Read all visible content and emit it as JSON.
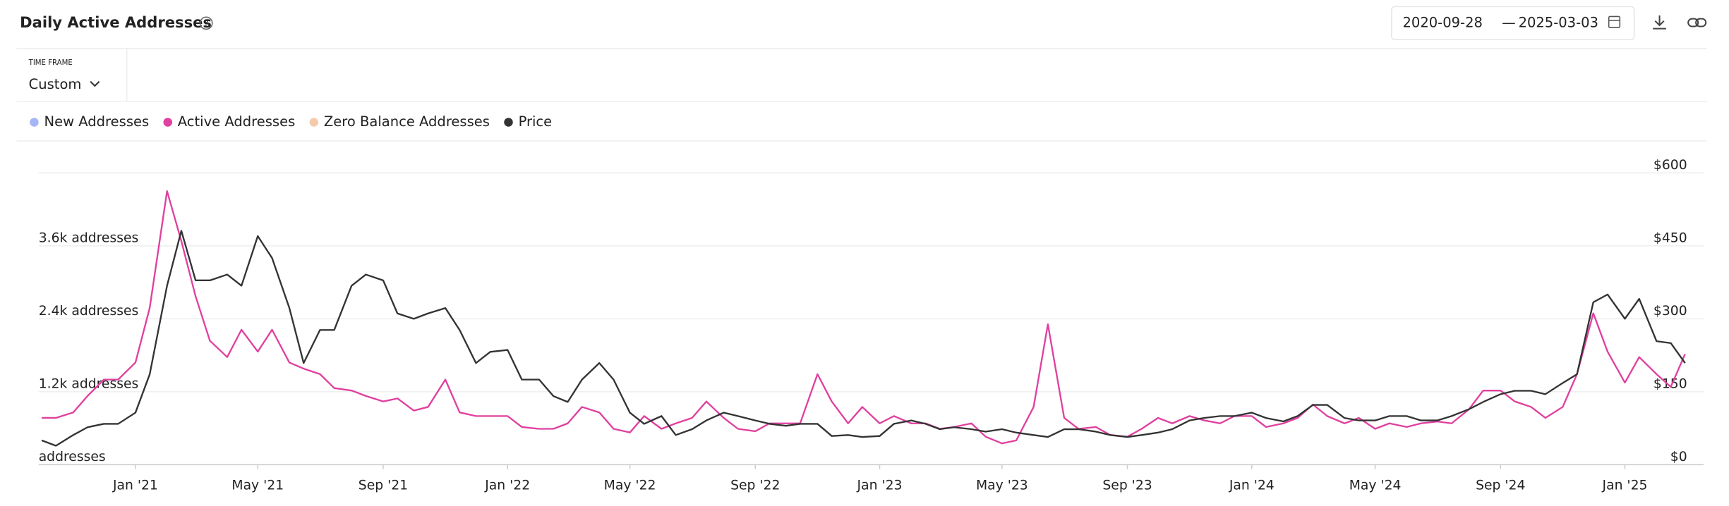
{
  "header": {
    "title": "Daily Active Addresses",
    "date_from": "2020-09-28",
    "date_separator": "—",
    "date_to": "2025-03-03",
    "timeframe_label": "TIME FRAME",
    "timeframe_value": "Custom"
  },
  "chart_data": {
    "type": "line",
    "x": [
      "2020-10-01",
      "2020-10-15",
      "2020-11-01",
      "2020-11-15",
      "2020-12-01",
      "2020-12-15",
      "2021-01-01",
      "2021-01-15",
      "2021-02-01",
      "2021-02-15",
      "2021-03-01",
      "2021-03-15",
      "2021-04-01",
      "2021-04-15",
      "2021-05-01",
      "2021-05-15",
      "2021-06-01",
      "2021-06-15",
      "2021-07-01",
      "2021-07-15",
      "2021-08-01",
      "2021-08-15",
      "2021-09-01",
      "2021-09-15",
      "2021-10-01",
      "2021-10-15",
      "2021-11-01",
      "2021-11-15",
      "2021-12-01",
      "2021-12-15",
      "2022-01-01",
      "2022-01-15",
      "2022-02-01",
      "2022-02-15",
      "2022-03-01",
      "2022-03-15",
      "2022-04-01",
      "2022-04-15",
      "2022-05-01",
      "2022-05-15",
      "2022-06-01",
      "2022-06-15",
      "2022-07-01",
      "2022-07-15",
      "2022-08-01",
      "2022-08-15",
      "2022-09-01",
      "2022-09-15",
      "2022-10-01",
      "2022-10-15",
      "2022-11-01",
      "2022-11-15",
      "2022-12-01",
      "2022-12-15",
      "2023-01-01",
      "2023-01-15",
      "2023-02-01",
      "2023-02-15",
      "2023-03-01",
      "2023-03-15",
      "2023-04-01",
      "2023-04-15",
      "2023-05-01",
      "2023-05-15",
      "2023-06-01",
      "2023-06-15",
      "2023-07-01",
      "2023-07-15",
      "2023-08-01",
      "2023-08-15",
      "2023-09-01",
      "2023-09-15",
      "2023-10-01",
      "2023-10-15",
      "2023-11-01",
      "2023-11-15",
      "2023-12-01",
      "2023-12-15",
      "2024-01-01",
      "2024-01-15",
      "2024-02-01",
      "2024-02-15",
      "2024-03-01",
      "2024-03-15",
      "2024-04-01",
      "2024-04-15",
      "2024-05-01",
      "2024-05-15",
      "2024-06-01",
      "2024-06-15",
      "2024-07-01",
      "2024-07-15",
      "2024-08-01",
      "2024-08-15",
      "2024-09-01",
      "2024-09-15",
      "2024-10-01",
      "2024-10-15",
      "2024-11-01",
      "2024-11-15",
      "2024-12-01",
      "2024-12-15",
      "2025-01-01",
      "2025-01-15",
      "2025-02-01",
      "2025-02-15",
      "2025-03-01"
    ],
    "xlim": [
      "2020-09-28",
      "2025-03-03"
    ],
    "xticks": [
      {
        "value": "2021-01-01",
        "label": "Jan '21"
      },
      {
        "value": "2021-05-01",
        "label": "May '21"
      },
      {
        "value": "2021-09-01",
        "label": "Sep '21"
      },
      {
        "value": "2022-01-01",
        "label": "Jan '22"
      },
      {
        "value": "2022-05-01",
        "label": "May '22"
      },
      {
        "value": "2022-09-01",
        "label": "Sep '22"
      },
      {
        "value": "2023-01-01",
        "label": "Jan '23"
      },
      {
        "value": "2023-05-01",
        "label": "May '23"
      },
      {
        "value": "2023-09-01",
        "label": "Sep '23"
      },
      {
        "value": "2024-01-01",
        "label": "Jan '24"
      },
      {
        "value": "2024-05-01",
        "label": "May '24"
      },
      {
        "value": "2024-09-01",
        "label": "Sep '24"
      },
      {
        "value": "2025-01-01",
        "label": "Jan '25"
      }
    ],
    "ylim": [
      0,
      4800
    ],
    "yticks": [
      {
        "value": 0,
        "label": "addresses"
      },
      {
        "value": 1200,
        "label": "1.2k addresses"
      },
      {
        "value": 2400,
        "label": "2.4k addresses"
      },
      {
        "value": 3600,
        "label": "3.6k addresses"
      }
    ],
    "y2lim": [
      0,
      600
    ],
    "y2ticks": [
      {
        "value": 0,
        "label": "$0"
      },
      {
        "value": 150,
        "label": "$150"
      },
      {
        "value": 300,
        "label": "$300"
      },
      {
        "value": 450,
        "label": "$450"
      },
      {
        "value": 600,
        "label": "$600"
      }
    ],
    "grid": true,
    "series": [
      {
        "name": "Active Addresses",
        "color": "#e0409f",
        "values": [
          770,
          770,
          860,
          1130,
          1400,
          1400,
          1680,
          2580,
          4500,
          3680,
          2770,
          2040,
          1770,
          2220,
          1860,
          2220,
          1680,
          1580,
          1490,
          1260,
          1220,
          1130,
          1040,
          1090,
          890,
          950,
          1400,
          860,
          800,
          800,
          800,
          620,
          590,
          590,
          680,
          950,
          860,
          590,
          530,
          800,
          590,
          680,
          770,
          1040,
          770,
          590,
          550,
          680,
          680,
          680,
          1490,
          1040,
          680,
          950,
          680,
          800,
          680,
          680,
          590,
          620,
          680,
          460,
          350,
          400,
          950,
          2310,
          770,
          590,
          620,
          490,
          460,
          590,
          770,
          680,
          800,
          730,
          680,
          800,
          800,
          620,
          680,
          770,
          990,
          800,
          680,
          770,
          590,
          680,
          620,
          680,
          710,
          680,
          910,
          1220,
          1220,
          1040,
          950,
          770,
          950,
          1490,
          2490,
          1860,
          1350,
          1770,
          1490,
          1280,
          1820
        ]
      },
      {
        "name": "Price",
        "color": "#333333",
        "axis": "y2",
        "values": [
          50,
          39,
          61,
          77,
          84,
          84,
          107,
          186,
          368,
          481,
          379,
          379,
          391,
          368,
          470,
          425,
          322,
          209,
          277,
          277,
          368,
          391,
          379,
          311,
          300,
          311,
          322,
          277,
          209,
          232,
          236,
          175,
          175,
          141,
          129,
          175,
          209,
          175,
          107,
          84,
          100,
          61,
          73,
          91,
          107,
          100,
          91,
          84,
          80,
          84,
          84,
          59,
          61,
          57,
          59,
          84,
          91,
          84,
          73,
          77,
          73,
          68,
          73,
          66,
          61,
          57,
          73,
          73,
          68,
          61,
          57,
          61,
          66,
          73,
          91,
          96,
          100,
          100,
          107,
          96,
          89,
          100,
          123,
          123,
          96,
          91,
          91,
          100,
          100,
          91,
          91,
          100,
          114,
          129,
          145,
          152,
          152,
          145,
          168,
          186,
          334,
          350,
          300,
          341,
          254,
          250,
          209
        ]
      }
    ],
    "hidden_series": [
      {
        "name": "New Addresses",
        "color": "#8ea3f2"
      },
      {
        "name": "Zero Balance Addresses",
        "color": "#f3bd97"
      }
    ]
  }
}
